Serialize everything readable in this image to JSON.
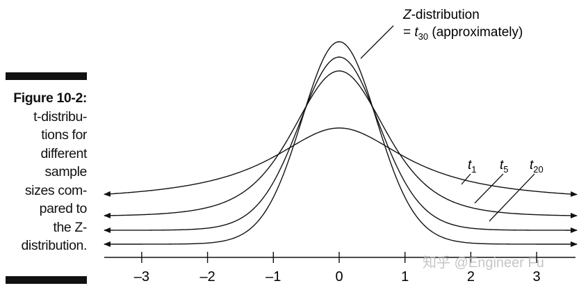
{
  "caption": {
    "figure_label": "Figure 10-2:",
    "lines": [
      "t-distribu-",
      "tions for",
      "different",
      "sample",
      "sizes com-",
      "pared to",
      "the Z-",
      "distribution."
    ]
  },
  "watermark": "知乎 @Engineer Fu",
  "chart_data": {
    "type": "line",
    "title": "",
    "xlabel": "",
    "ylabel": "",
    "xlim": [
      -3.6,
      3.6
    ],
    "x_ticks": [
      -3,
      -2,
      -1,
      0,
      1,
      2,
      3
    ],
    "x_tick_labels": [
      "–3",
      "–2",
      "–1",
      "0",
      "1",
      "2",
      "3"
    ],
    "grid": false,
    "y_axis_shown": false,
    "series": [
      {
        "name": "t1",
        "label_base": "t",
        "label_sub": "1",
        "df": 1
      },
      {
        "name": "t5",
        "label_base": "t",
        "label_sub": "5",
        "df": 5
      },
      {
        "name": "t20",
        "label_base": "t",
        "label_sub": "20",
        "df": 20
      },
      {
        "name": "Z",
        "df": 30
      }
    ],
    "annotations": {
      "z_line1_italic": "Z",
      "z_line1_rest": "-distribution",
      "z_line2_prefix": "= ",
      "z_line2_t": "t",
      "z_line2_sub": "30",
      "z_line2_rest": " (approximately)"
    }
  }
}
